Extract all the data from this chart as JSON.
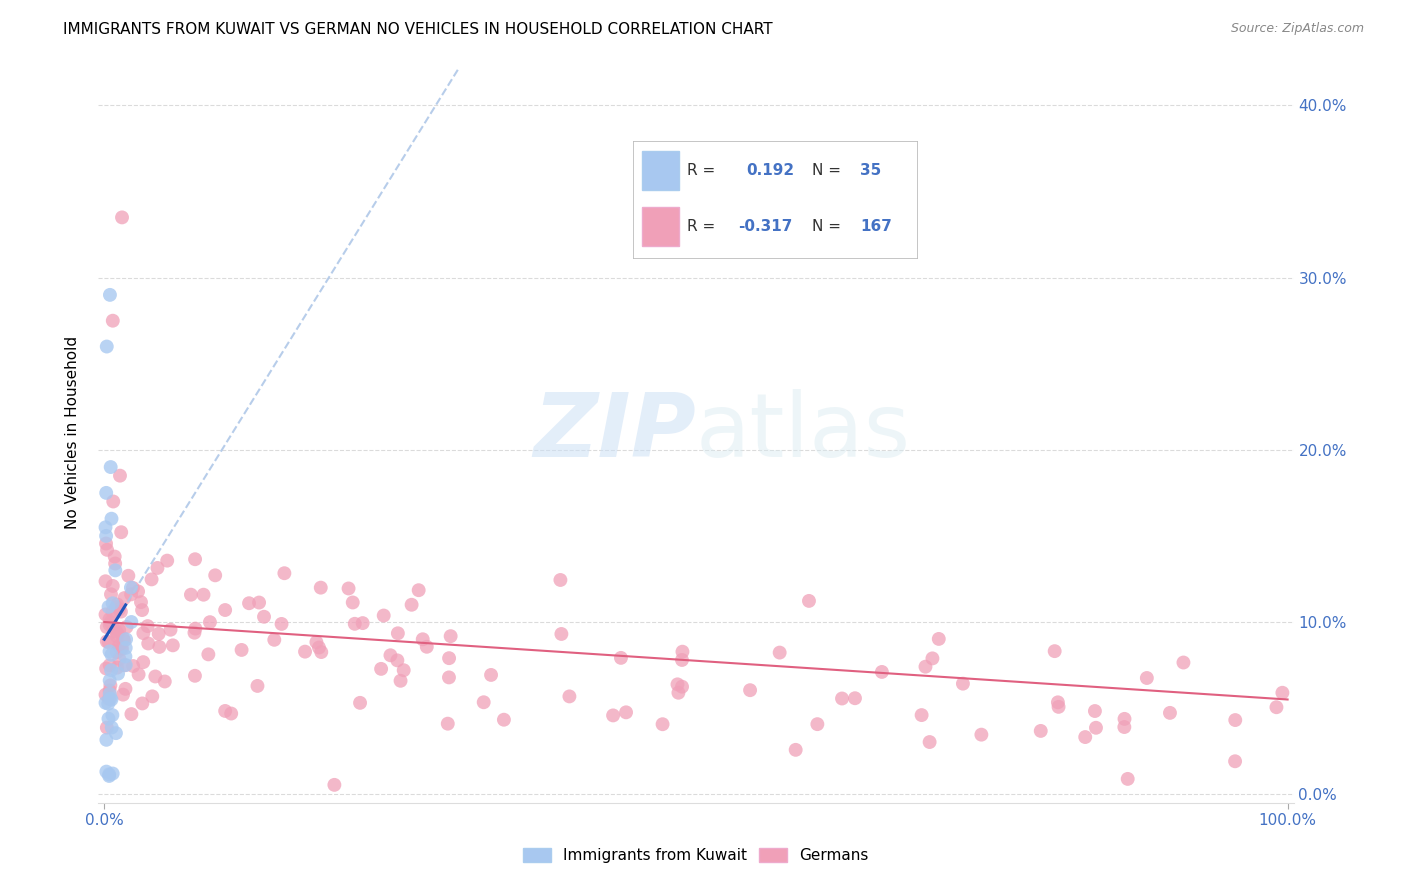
{
  "title": "IMMIGRANTS FROM KUWAIT VS GERMAN NO VEHICLES IN HOUSEHOLD CORRELATION CHART",
  "source": "Source: ZipAtlas.com",
  "ylabel": "No Vehicles in Household",
  "r_kuwait": 0.192,
  "n_kuwait": 35,
  "r_german": -0.317,
  "n_german": 167,
  "watermark_zip": "ZIP",
  "watermark_atlas": "atlas",
  "title_fontsize": 11,
  "axis_color": "#4472c4",
  "background_color": "#ffffff",
  "grid_color": "#cccccc",
  "blue_scatter_color": "#a8c8f0",
  "pink_scatter_color": "#f0a0b8",
  "blue_line_color": "#2255bb",
  "pink_line_color": "#e06080",
  "blue_dashed_color": "#b0c8e8",
  "xlim": [
    -0.005,
    1.005
  ],
  "ylim": [
    -0.005,
    0.425
  ],
  "ytick_vals": [
    0.0,
    0.1,
    0.2,
    0.3,
    0.4
  ],
  "ytick_labels": [
    "0.0%",
    "10.0%",
    "20.0%",
    "30.0%",
    "40.0%"
  ],
  "xtick_vals": [
    0.0,
    1.0
  ],
  "xtick_labels": [
    "0.0%",
    "100.0%"
  ]
}
